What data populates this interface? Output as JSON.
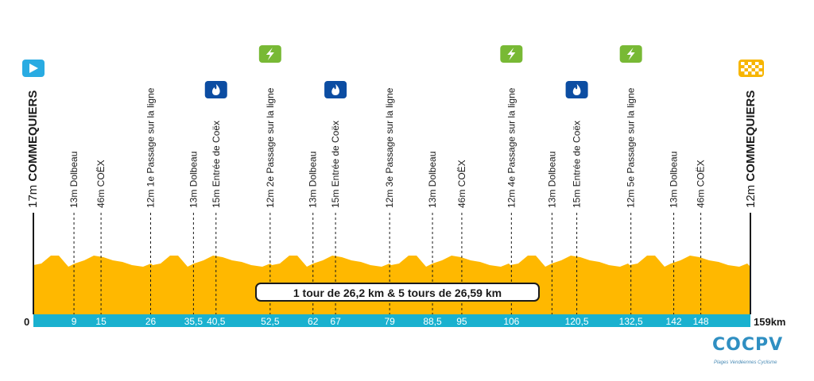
{
  "chart_data": {
    "type": "area",
    "title": "",
    "xlabel": "",
    "ylabel": "",
    "xlim": [
      0,
      159
    ],
    "start": {
      "altitude": "17m",
      "name": "COMMEQUIERS",
      "km": "0"
    },
    "finish": {
      "altitude": "12m",
      "name": "COMMEQUIERS",
      "km": "159km"
    },
    "banner": "1 tour de 26,2 km &  5 tours de 26,59 km",
    "waypoints": [
      {
        "km": 9,
        "km_label": "9",
        "altitude": "13m",
        "name": "Dolbeau",
        "marker": ""
      },
      {
        "km": 15,
        "km_label": "15",
        "altitude": "46m",
        "name": "COËX",
        "marker": ""
      },
      {
        "km": 26,
        "km_label": "26",
        "altitude": "12m",
        "name": "1e Passage sur la ligne",
        "marker": ""
      },
      {
        "km": 35.5,
        "km_label": "35,5",
        "altitude": "13m",
        "name": "Dolbeau",
        "marker": ""
      },
      {
        "km": 40.5,
        "km_label": "40,5",
        "altitude": "15m",
        "name": "Entrée de  Coëx",
        "marker": "flame"
      },
      {
        "km": 52.5,
        "km_label": "52,5",
        "altitude": "12m",
        "name": "2e Passage sur la ligne",
        "marker": "bolt"
      },
      {
        "km": 62,
        "km_label": "62",
        "altitude": "13m",
        "name": "Dolbeau",
        "marker": ""
      },
      {
        "km": 67,
        "km_label": "67",
        "altitude": "15m",
        "name": "Entrée de  Coëx",
        "marker": "flame"
      },
      {
        "km": 79,
        "km_label": "79",
        "altitude": "12m",
        "name": "3e Passage sur la ligne",
        "marker": ""
      },
      {
        "km": 88.5,
        "km_label": "88,5",
        "altitude": "13m",
        "name": "Dolbeau",
        "marker": ""
      },
      {
        "km": 95,
        "km_label": "95",
        "altitude": "46m",
        "name": "COËX",
        "marker": ""
      },
      {
        "km": 106,
        "km_label": "106",
        "altitude": "12m",
        "name": "4e Passage sur la ligne",
        "marker": "bolt"
      },
      {
        "km": 115,
        "km_label": "",
        "altitude": "13m",
        "name": "Dolbeau",
        "marker": ""
      },
      {
        "km": 120.5,
        "km_label": "120,5",
        "altitude": "15m",
        "name": "Entrée de  Coëx",
        "marker": "flame"
      },
      {
        "km": 132.5,
        "km_label": "132,5",
        "altitude": "12m",
        "name": "5e Passage sur la ligne",
        "marker": "bolt"
      },
      {
        "km": 142,
        "km_label": "142",
        "altitude": "13m",
        "name": "Dolbeau",
        "marker": ""
      },
      {
        "km": 148,
        "km_label": "148",
        "altitude": "46m",
        "name": "COËX",
        "marker": ""
      }
    ],
    "colors": {
      "profile": "#ffb800",
      "baseline": "#1ab1cf",
      "flame_badge": "#0c4da2",
      "bolt_badge": "#78b935",
      "start_badge": "#29abe2",
      "finish_badge": "#f7b500"
    }
  },
  "logo": {
    "text": "COCPV",
    "subtitle": "Plages Vendéennes Cyclisme"
  }
}
